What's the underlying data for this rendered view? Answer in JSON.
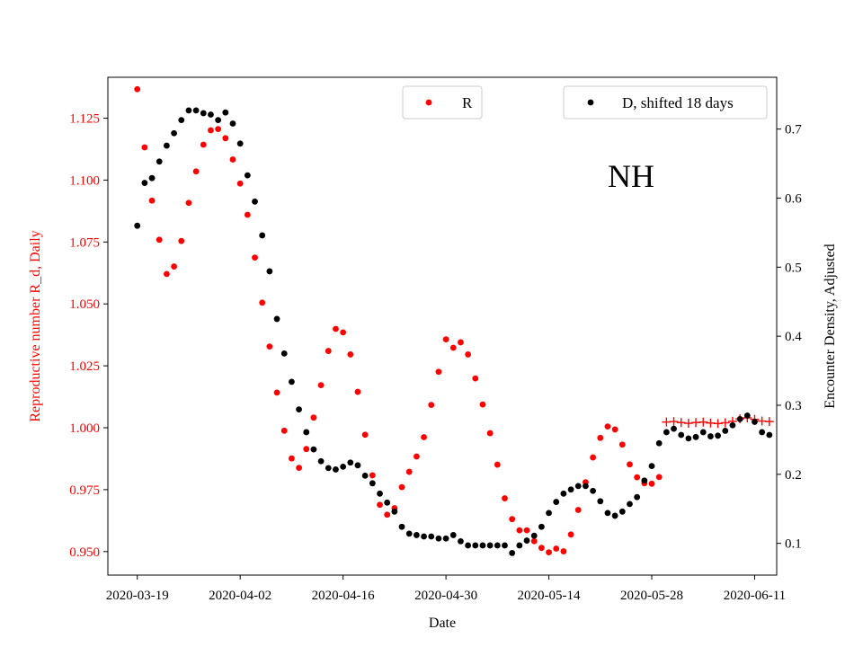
{
  "chart_data": {
    "type": "scatter",
    "annotation": "NH",
    "colors": {
      "r": "#ff0000",
      "d": "#000000",
      "axis_left": "#ff0000",
      "axis_right": "#000000"
    },
    "legend_r": {
      "label": "R",
      "placement": "upper-center"
    },
    "legend_d": {
      "label": "D, shifted 18 days",
      "placement": "upper-right"
    },
    "xaxis": {
      "label": "Date",
      "start": "2020-03-19",
      "ticks": [
        "2020-03-19",
        "2020-04-02",
        "2020-04-16",
        "2020-04-30",
        "2020-05-14",
        "2020-05-28",
        "2020-06-11"
      ],
      "range": [
        "2020-03-15",
        "2020-06-14"
      ]
    },
    "yaxis_left": {
      "label": "Reproductive number R_d, Daily",
      "ticks": [
        "0.950",
        "0.975",
        "1.000",
        "1.025",
        "1.050",
        "1.075",
        "1.100",
        "1.125"
      ],
      "range": [
        0.9405,
        1.1415
      ]
    },
    "yaxis_right": {
      "label": "Encounter Density, Adjusted",
      "ticks": [
        "0.1",
        "0.2",
        "0.3",
        "0.4",
        "0.5",
        "0.6",
        "0.7"
      ],
      "range": [
        0.054,
        0.775
      ]
    },
    "series": [
      {
        "name": "R",
        "axis": "left",
        "marker": "dot",
        "points": [
          [
            "2020-03-19",
            1.1367
          ],
          [
            "2020-03-20",
            1.1132
          ],
          [
            "2020-03-21",
            1.0917
          ],
          [
            "2020-03-22",
            1.0759
          ],
          [
            "2020-03-23",
            1.0621
          ],
          [
            "2020-03-24",
            1.0651
          ],
          [
            "2020-03-25",
            1.0754
          ],
          [
            "2020-03-26",
            1.0908
          ],
          [
            "2020-03-27",
            1.1035
          ],
          [
            "2020-03-28",
            1.1143
          ],
          [
            "2020-03-29",
            1.1201
          ],
          [
            "2020-03-30",
            1.1206
          ],
          [
            "2020-03-31",
            1.1169
          ],
          [
            "2020-04-01",
            1.1083
          ],
          [
            "2020-04-02",
            1.0986
          ],
          [
            "2020-04-03",
            1.086
          ],
          [
            "2020-04-04",
            1.0687
          ],
          [
            "2020-04-05",
            1.0505
          ],
          [
            "2020-04-06",
            1.0328
          ],
          [
            "2020-04-07",
            1.0142
          ],
          [
            "2020-04-08",
            0.9988
          ],
          [
            "2020-04-09",
            0.9876
          ],
          [
            "2020-04-10",
            0.9838
          ],
          [
            "2020-04-11",
            0.9914
          ],
          [
            "2020-04-12",
            1.0041
          ],
          [
            "2020-04-13",
            1.0172
          ],
          [
            "2020-04-14",
            1.031
          ],
          [
            "2020-04-15",
            1.0399
          ],
          [
            "2020-04-16",
            1.0385
          ],
          [
            "2020-04-17",
            1.0296
          ],
          [
            "2020-04-18",
            1.0145
          ],
          [
            "2020-04-19",
            0.9972
          ],
          [
            "2020-04-20",
            0.9808
          ],
          [
            "2020-04-21",
            0.9689
          ],
          [
            "2020-04-22",
            0.9649
          ],
          [
            "2020-04-23",
            0.9675
          ],
          [
            "2020-04-24",
            0.976
          ],
          [
            "2020-04-25",
            0.9822
          ],
          [
            "2020-04-26",
            0.9884
          ],
          [
            "2020-04-27",
            0.9962
          ],
          [
            "2020-04-28",
            1.0092
          ],
          [
            "2020-04-29",
            1.0226
          ],
          [
            "2020-04-30",
            1.0357
          ],
          [
            "2020-05-01",
            1.0323
          ],
          [
            "2020-05-02",
            1.0345
          ],
          [
            "2020-05-03",
            1.0296
          ],
          [
            "2020-05-04",
            1.0199
          ],
          [
            "2020-05-05",
            1.0094
          ],
          [
            "2020-05-06",
            0.9978
          ],
          [
            "2020-05-07",
            0.9851
          ],
          [
            "2020-05-08",
            0.9715
          ],
          [
            "2020-05-09",
            0.9631
          ],
          [
            "2020-05-10",
            0.9586
          ],
          [
            "2020-05-11",
            0.9586
          ],
          [
            "2020-05-12",
            0.9542
          ],
          [
            "2020-05-13",
            0.9515
          ],
          [
            "2020-05-14",
            0.9497
          ],
          [
            "2020-05-15",
            0.9512
          ],
          [
            "2020-05-16",
            0.9501
          ],
          [
            "2020-05-17",
            0.9569
          ],
          [
            "2020-05-18",
            0.9668
          ],
          [
            "2020-05-19",
            0.978
          ],
          [
            "2020-05-20",
            0.988
          ],
          [
            "2020-05-21",
            0.9959
          ],
          [
            "2020-05-22",
            1.0005
          ],
          [
            "2020-05-23",
            0.9993
          ],
          [
            "2020-05-24",
            0.9932
          ],
          [
            "2020-05-25",
            0.9852
          ],
          [
            "2020-05-26",
            0.98
          ],
          [
            "2020-05-27",
            0.9776
          ],
          [
            "2020-05-28",
            0.9774
          ],
          [
            "2020-05-29",
            0.9801
          ]
        ]
      },
      {
        "name": "R",
        "axis": "left",
        "marker": "plus",
        "points": [
          [
            "2020-05-30",
            1.0023
          ],
          [
            "2020-05-31",
            1.0025
          ],
          [
            "2020-06-01",
            1.0021
          ],
          [
            "2020-06-02",
            1.0018
          ],
          [
            "2020-06-03",
            1.0021
          ],
          [
            "2020-06-04",
            1.0023
          ],
          [
            "2020-06-05",
            1.0019
          ],
          [
            "2020-06-06",
            1.0017
          ],
          [
            "2020-06-07",
            1.002
          ],
          [
            "2020-06-08",
            1.0026
          ],
          [
            "2020-06-09",
            1.0036
          ],
          [
            "2020-06-10",
            1.004
          ],
          [
            "2020-06-11",
            1.0034
          ],
          [
            "2020-06-12",
            1.0027
          ],
          [
            "2020-06-13",
            1.0025
          ]
        ]
      },
      {
        "name": "D, shifted 18 days",
        "axis": "right",
        "marker": "dot",
        "points": [
          [
            "2020-03-19",
            0.56
          ],
          [
            "2020-03-20",
            0.622
          ],
          [
            "2020-03-21",
            0.629
          ],
          [
            "2020-03-22",
            0.653
          ],
          [
            "2020-03-23",
            0.676
          ],
          [
            "2020-03-24",
            0.694
          ],
          [
            "2020-03-25",
            0.713
          ],
          [
            "2020-03-26",
            0.727
          ],
          [
            "2020-03-27",
            0.727
          ],
          [
            "2020-03-28",
            0.723
          ],
          [
            "2020-03-29",
            0.721
          ],
          [
            "2020-03-30",
            0.713
          ],
          [
            "2020-03-31",
            0.724
          ],
          [
            "2020-04-01",
            0.708
          ],
          [
            "2020-04-02",
            0.679
          ],
          [
            "2020-04-03",
            0.633
          ],
          [
            "2020-04-04",
            0.595
          ],
          [
            "2020-04-05",
            0.546
          ],
          [
            "2020-04-06",
            0.494
          ],
          [
            "2020-04-07",
            0.425
          ],
          [
            "2020-04-08",
            0.375
          ],
          [
            "2020-04-09",
            0.334
          ],
          [
            "2020-04-10",
            0.294
          ],
          [
            "2020-04-11",
            0.261
          ],
          [
            "2020-04-12",
            0.236
          ],
          [
            "2020-04-13",
            0.219
          ],
          [
            "2020-04-14",
            0.209
          ],
          [
            "2020-04-15",
            0.207
          ],
          [
            "2020-04-16",
            0.211
          ],
          [
            "2020-04-17",
            0.217
          ],
          [
            "2020-04-18",
            0.213
          ],
          [
            "2020-04-19",
            0.198
          ],
          [
            "2020-04-20",
            0.187
          ],
          [
            "2020-04-21",
            0.172
          ],
          [
            "2020-04-22",
            0.159
          ],
          [
            "2020-04-23",
            0.146
          ],
          [
            "2020-04-24",
            0.124
          ],
          [
            "2020-04-25",
            0.114
          ],
          [
            "2020-04-26",
            0.112
          ],
          [
            "2020-04-27",
            0.11
          ],
          [
            "2020-04-28",
            0.11
          ],
          [
            "2020-04-29",
            0.107
          ],
          [
            "2020-04-30",
            0.107
          ],
          [
            "2020-05-01",
            0.112
          ],
          [
            "2020-05-02",
            0.103
          ],
          [
            "2020-05-03",
            0.097
          ],
          [
            "2020-05-04",
            0.097
          ],
          [
            "2020-05-05",
            0.097
          ],
          [
            "2020-05-06",
            0.097
          ],
          [
            "2020-05-07",
            0.097
          ],
          [
            "2020-05-08",
            0.097
          ],
          [
            "2020-05-09",
            0.086
          ],
          [
            "2020-05-10",
            0.097
          ],
          [
            "2020-05-11",
            0.104
          ],
          [
            "2020-05-12",
            0.111
          ],
          [
            "2020-05-13",
            0.124
          ],
          [
            "2020-05-14",
            0.144
          ],
          [
            "2020-05-15",
            0.16
          ],
          [
            "2020-05-16",
            0.172
          ],
          [
            "2020-05-17",
            0.178
          ],
          [
            "2020-05-18",
            0.183
          ],
          [
            "2020-05-19",
            0.183
          ],
          [
            "2020-05-20",
            0.176
          ],
          [
            "2020-05-21",
            0.161
          ],
          [
            "2020-05-22",
            0.144
          ],
          [
            "2020-05-23",
            0.14
          ],
          [
            "2020-05-24",
            0.146
          ],
          [
            "2020-05-25",
            0.157
          ],
          [
            "2020-05-26",
            0.167
          ],
          [
            "2020-05-27",
            0.191
          ],
          [
            "2020-05-28",
            0.212
          ],
          [
            "2020-05-29",
            0.245
          ],
          [
            "2020-05-30",
            0.261
          ],
          [
            "2020-05-31",
            0.266
          ],
          [
            "2020-06-01",
            0.257
          ],
          [
            "2020-06-02",
            0.252
          ],
          [
            "2020-06-03",
            0.254
          ],
          [
            "2020-06-04",
            0.261
          ],
          [
            "2020-06-05",
            0.255
          ],
          [
            "2020-06-06",
            0.256
          ],
          [
            "2020-06-07",
            0.263
          ],
          [
            "2020-06-08",
            0.271
          ],
          [
            "2020-06-09",
            0.28
          ],
          [
            "2020-06-10",
            0.285
          ],
          [
            "2020-06-11",
            0.276
          ],
          [
            "2020-06-12",
            0.261
          ],
          [
            "2020-06-13",
            0.257
          ]
        ]
      }
    ]
  }
}
